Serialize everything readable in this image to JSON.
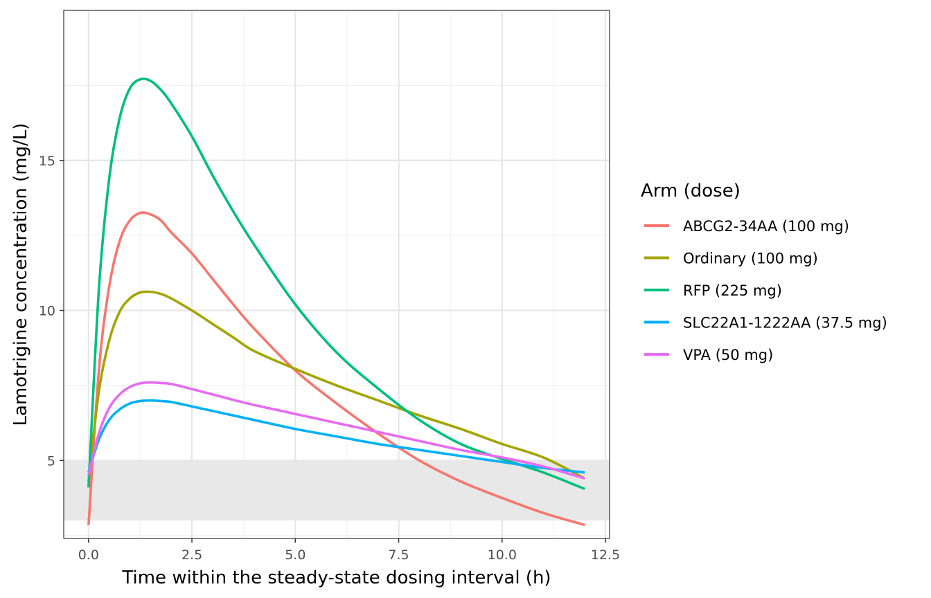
{
  "chart_data": {
    "type": "line",
    "xlabel": "Time within the steady-state dosing interval (h)",
    "ylabel": "Lamotrigine concentration (mg/L)",
    "xlim": [
      -0.6,
      12.6
    ],
    "ylim": [
      2.4,
      20.0
    ],
    "x_ticks": [
      0.0,
      2.5,
      5.0,
      7.5,
      10.0,
      12.5
    ],
    "x_tick_labels": [
      "0.0",
      "2.5",
      "5.0",
      "7.5",
      "10.0",
      "12.5"
    ],
    "y_ticks": [
      5,
      10,
      15
    ],
    "y_tick_labels": [
      "5",
      "10",
      "15"
    ],
    "grid": true,
    "theme": "bw",
    "reference_band": {
      "y_from": 3.0,
      "y_to": 5.0,
      "color": "#e8e8e8"
    },
    "legend": {
      "title": "Arm (dose)",
      "position": "right"
    },
    "x": [
      0,
      0.25,
      0.5,
      0.75,
      1.0,
      1.25,
      1.5,
      1.75,
      2.0,
      2.5,
      3.0,
      3.5,
      4.0,
      5.0,
      6.0,
      7.0,
      8.0,
      9.0,
      10.0,
      11.0,
      12.0
    ],
    "series": [
      {
        "name": "ABCG2-34AA (100 mg)",
        "color": "#F8766D",
        "values": [
          2.85,
          8.0,
          10.8,
          12.3,
          13.0,
          13.25,
          13.2,
          13.0,
          12.6,
          11.9,
          11.05,
          10.2,
          9.4,
          8.0,
          6.9,
          5.9,
          5.0,
          4.3,
          3.75,
          3.25,
          2.85
        ]
      },
      {
        "name": "Ordinary (100 mg)",
        "color": "#A3A500",
        "values": [
          4.3,
          7.3,
          9.0,
          9.95,
          10.4,
          10.6,
          10.62,
          10.55,
          10.4,
          10.0,
          9.55,
          9.1,
          8.65,
          8.05,
          7.5,
          7.0,
          6.5,
          6.05,
          5.55,
          5.1,
          4.4
        ]
      },
      {
        "name": "RFP (225 mg)",
        "color": "#00BF7D",
        "values": [
          4.1,
          10.7,
          14.4,
          16.4,
          17.4,
          17.7,
          17.65,
          17.35,
          16.9,
          15.8,
          14.5,
          13.3,
          12.2,
          10.2,
          8.6,
          7.4,
          6.35,
          5.55,
          5.05,
          4.6,
          4.05
        ]
      },
      {
        "name": "SLC22A1-1222AA (37.5 mg)",
        "color": "#00B0F6",
        "values": [
          4.6,
          5.7,
          6.35,
          6.7,
          6.9,
          6.98,
          7.0,
          6.98,
          6.95,
          6.8,
          6.65,
          6.5,
          6.35,
          6.05,
          5.8,
          5.55,
          5.35,
          5.15,
          4.95,
          4.75,
          4.6
        ]
      },
      {
        "name": "VPA (50 mg)",
        "color": "#E76BF3",
        "values": [
          4.5,
          5.9,
          6.75,
          7.2,
          7.45,
          7.57,
          7.6,
          7.58,
          7.55,
          7.38,
          7.2,
          7.02,
          6.85,
          6.55,
          6.25,
          5.95,
          5.65,
          5.35,
          5.1,
          4.8,
          4.4
        ]
      }
    ]
  }
}
